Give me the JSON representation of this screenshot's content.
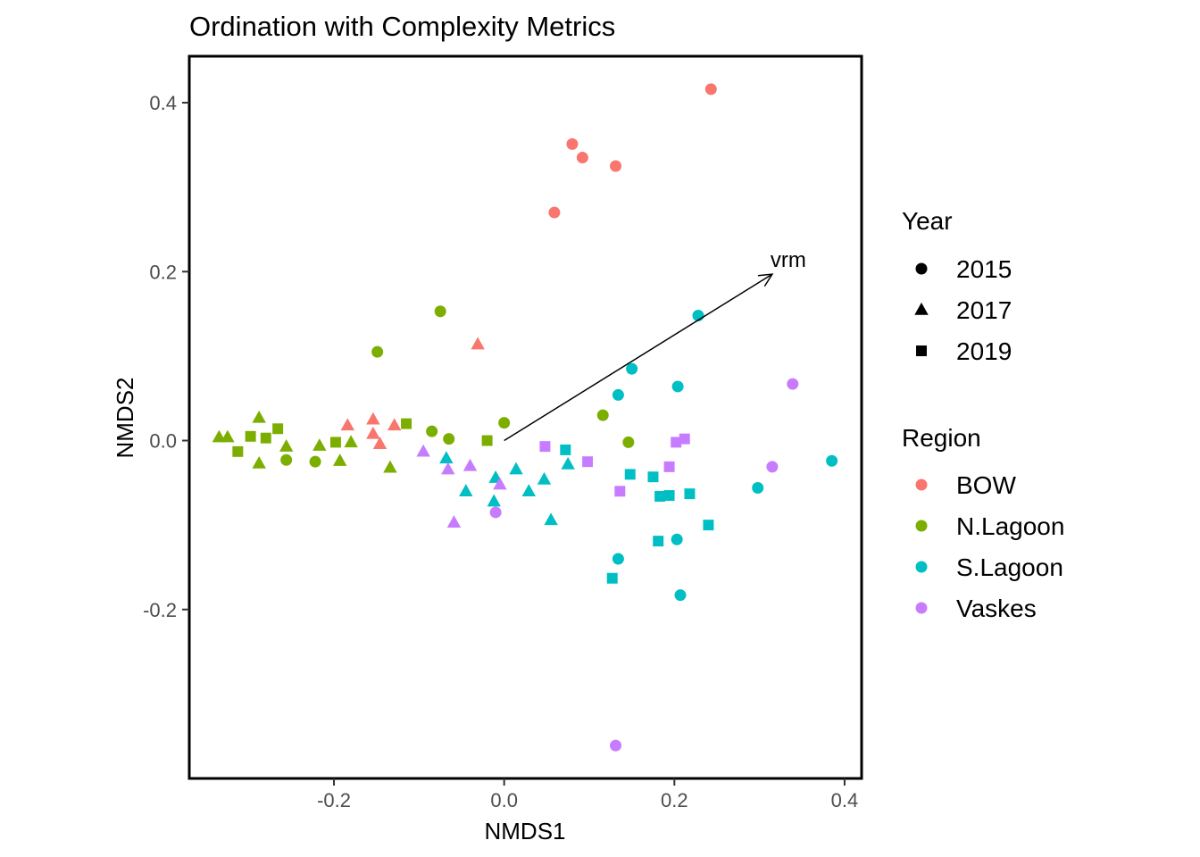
{
  "chart_data": {
    "type": "scatter",
    "title": "Ordination with Complexity Metrics",
    "xlabel": "NMDS1",
    "ylabel": "NMDS2",
    "xlim": [
      -0.37,
      0.42
    ],
    "ylim": [
      -0.4,
      0.455
    ],
    "x_ticks": [
      -0.2,
      0.0,
      0.2,
      0.4
    ],
    "x_tick_labels": [
      "-0.2",
      "0.0",
      "0.2",
      "0.4"
    ],
    "y_ticks": [
      -0.2,
      0.0,
      0.2,
      0.4
    ],
    "y_tick_labels": [
      "-0.2",
      "0.0",
      "0.2",
      "0.4"
    ],
    "grid": false,
    "legend": {
      "placement": "right",
      "shape_title": "Year",
      "shapes": [
        {
          "label": "2015",
          "shape": "circle"
        },
        {
          "label": "2017",
          "shape": "triangle"
        },
        {
          "label": "2019",
          "shape": "square"
        }
      ],
      "color_title": "Region",
      "colors": [
        {
          "label": "BOW",
          "color": "#F8766D"
        },
        {
          "label": "N.Lagoon",
          "color": "#7CAE00"
        },
        {
          "label": "S.Lagoon",
          "color": "#00BFC4"
        },
        {
          "label": "Vaskes",
          "color": "#C77CFF"
        }
      ]
    },
    "vector": {
      "label": "vrm",
      "x0": 0.0,
      "y0": 0.0,
      "x1": 0.315,
      "y1": 0.197
    },
    "points": [
      {
        "x": 0.243,
        "y": 0.416,
        "region": "BOW",
        "year": "2015"
      },
      {
        "x": 0.08,
        "y": 0.351,
        "region": "BOW",
        "year": "2015"
      },
      {
        "x": 0.092,
        "y": 0.335,
        "region": "BOW",
        "year": "2015"
      },
      {
        "x": 0.131,
        "y": 0.325,
        "region": "BOW",
        "year": "2015"
      },
      {
        "x": 0.059,
        "y": 0.27,
        "region": "BOW",
        "year": "2015"
      },
      {
        "x": -0.031,
        "y": 0.114,
        "region": "BOW",
        "year": "2017"
      },
      {
        "x": -0.184,
        "y": 0.018,
        "region": "BOW",
        "year": "2017"
      },
      {
        "x": -0.154,
        "y": 0.025,
        "region": "BOW",
        "year": "2017"
      },
      {
        "x": -0.154,
        "y": 0.008,
        "region": "BOW",
        "year": "2017"
      },
      {
        "x": -0.146,
        "y": -0.004,
        "region": "BOW",
        "year": "2017"
      },
      {
        "x": -0.129,
        "y": 0.018,
        "region": "BOW",
        "year": "2017"
      },
      {
        "x": -0.075,
        "y": 0.153,
        "region": "N.Lagoon",
        "year": "2015"
      },
      {
        "x": -0.149,
        "y": 0.105,
        "region": "N.Lagoon",
        "year": "2015"
      },
      {
        "x": 0.0,
        "y": 0.021,
        "region": "N.Lagoon",
        "year": "2015"
      },
      {
        "x": -0.085,
        "y": 0.011,
        "region": "N.Lagoon",
        "year": "2015"
      },
      {
        "x": -0.065,
        "y": 0.002,
        "region": "N.Lagoon",
        "year": "2015"
      },
      {
        "x": -0.256,
        "y": -0.023,
        "region": "N.Lagoon",
        "year": "2015"
      },
      {
        "x": -0.222,
        "y": -0.025,
        "region": "N.Lagoon",
        "year": "2015"
      },
      {
        "x": 0.116,
        "y": 0.03,
        "region": "N.Lagoon",
        "year": "2015"
      },
      {
        "x": 0.146,
        "y": -0.002,
        "region": "N.Lagoon",
        "year": "2015"
      },
      {
        "x": -0.335,
        "y": 0.004,
        "region": "N.Lagoon",
        "year": "2017"
      },
      {
        "x": -0.325,
        "y": 0.004,
        "region": "N.Lagoon",
        "year": "2017"
      },
      {
        "x": -0.288,
        "y": 0.027,
        "region": "N.Lagoon",
        "year": "2017"
      },
      {
        "x": -0.288,
        "y": -0.027,
        "region": "N.Lagoon",
        "year": "2017"
      },
      {
        "x": -0.256,
        "y": -0.007,
        "region": "N.Lagoon",
        "year": "2017"
      },
      {
        "x": -0.217,
        "y": -0.006,
        "region": "N.Lagoon",
        "year": "2017"
      },
      {
        "x": -0.193,
        "y": -0.024,
        "region": "N.Lagoon",
        "year": "2017"
      },
      {
        "x": -0.18,
        "y": -0.002,
        "region": "N.Lagoon",
        "year": "2017"
      },
      {
        "x": -0.134,
        "y": -0.032,
        "region": "N.Lagoon",
        "year": "2017"
      },
      {
        "x": -0.313,
        "y": -0.013,
        "region": "N.Lagoon",
        "year": "2019"
      },
      {
        "x": -0.298,
        "y": 0.005,
        "region": "N.Lagoon",
        "year": "2019"
      },
      {
        "x": -0.28,
        "y": 0.003,
        "region": "N.Lagoon",
        "year": "2019"
      },
      {
        "x": -0.266,
        "y": 0.014,
        "region": "N.Lagoon",
        "year": "2019"
      },
      {
        "x": -0.198,
        "y": -0.002,
        "region": "N.Lagoon",
        "year": "2019"
      },
      {
        "x": -0.115,
        "y": 0.02,
        "region": "N.Lagoon",
        "year": "2019"
      },
      {
        "x": -0.02,
        "y": 0.0,
        "region": "N.Lagoon",
        "year": "2019"
      },
      {
        "x": 0.228,
        "y": 0.148,
        "region": "S.Lagoon",
        "year": "2015"
      },
      {
        "x": 0.15,
        "y": 0.085,
        "region": "S.Lagoon",
        "year": "2015"
      },
      {
        "x": 0.134,
        "y": 0.054,
        "region": "S.Lagoon",
        "year": "2015"
      },
      {
        "x": 0.204,
        "y": 0.064,
        "region": "S.Lagoon",
        "year": "2015"
      },
      {
        "x": 0.385,
        "y": -0.024,
        "region": "S.Lagoon",
        "year": "2015"
      },
      {
        "x": 0.298,
        "y": -0.056,
        "region": "S.Lagoon",
        "year": "2015"
      },
      {
        "x": 0.203,
        "y": -0.117,
        "region": "S.Lagoon",
        "year": "2015"
      },
      {
        "x": 0.134,
        "y": -0.14,
        "region": "S.Lagoon",
        "year": "2015"
      },
      {
        "x": 0.207,
        "y": -0.183,
        "region": "S.Lagoon",
        "year": "2015"
      },
      {
        "x": -0.068,
        "y": -0.021,
        "region": "S.Lagoon",
        "year": "2017"
      },
      {
        "x": -0.045,
        "y": -0.06,
        "region": "S.Lagoon",
        "year": "2017"
      },
      {
        "x": -0.01,
        "y": -0.044,
        "region": "S.Lagoon",
        "year": "2017"
      },
      {
        "x": -0.012,
        "y": -0.072,
        "region": "S.Lagoon",
        "year": "2017"
      },
      {
        "x": 0.014,
        "y": -0.034,
        "region": "S.Lagoon",
        "year": "2017"
      },
      {
        "x": 0.029,
        "y": -0.06,
        "region": "S.Lagoon",
        "year": "2017"
      },
      {
        "x": 0.047,
        "y": -0.046,
        "region": "S.Lagoon",
        "year": "2017"
      },
      {
        "x": 0.055,
        "y": -0.094,
        "region": "S.Lagoon",
        "year": "2017"
      },
      {
        "x": 0.075,
        "y": -0.028,
        "region": "S.Lagoon",
        "year": "2017"
      },
      {
        "x": 0.072,
        "y": -0.011,
        "region": "S.Lagoon",
        "year": "2019"
      },
      {
        "x": 0.148,
        "y": -0.04,
        "region": "S.Lagoon",
        "year": "2019"
      },
      {
        "x": 0.175,
        "y": -0.043,
        "region": "S.Lagoon",
        "year": "2019"
      },
      {
        "x": 0.183,
        "y": -0.066,
        "region": "S.Lagoon",
        "year": "2019"
      },
      {
        "x": 0.194,
        "y": -0.065,
        "region": "S.Lagoon",
        "year": "2019"
      },
      {
        "x": 0.218,
        "y": -0.063,
        "region": "S.Lagoon",
        "year": "2019"
      },
      {
        "x": 0.181,
        "y": -0.119,
        "region": "S.Lagoon",
        "year": "2019"
      },
      {
        "x": 0.24,
        "y": -0.1,
        "region": "S.Lagoon",
        "year": "2019"
      },
      {
        "x": 0.127,
        "y": -0.163,
        "region": "S.Lagoon",
        "year": "2019"
      },
      {
        "x": 0.339,
        "y": 0.067,
        "region": "Vaskes",
        "year": "2015"
      },
      {
        "x": 0.315,
        "y": -0.031,
        "region": "Vaskes",
        "year": "2015"
      },
      {
        "x": 0.131,
        "y": -0.361,
        "region": "Vaskes",
        "year": "2015"
      },
      {
        "x": -0.01,
        "y": -0.085,
        "region": "Vaskes",
        "year": "2015"
      },
      {
        "x": -0.095,
        "y": -0.013,
        "region": "Vaskes",
        "year": "2017"
      },
      {
        "x": -0.066,
        "y": -0.034,
        "region": "Vaskes",
        "year": "2017"
      },
      {
        "x": -0.04,
        "y": -0.03,
        "region": "Vaskes",
        "year": "2017"
      },
      {
        "x": -0.059,
        "y": -0.097,
        "region": "Vaskes",
        "year": "2017"
      },
      {
        "x": -0.005,
        "y": -0.052,
        "region": "Vaskes",
        "year": "2017"
      },
      {
        "x": 0.048,
        "y": -0.007,
        "region": "Vaskes",
        "year": "2019"
      },
      {
        "x": 0.098,
        "y": -0.025,
        "region": "Vaskes",
        "year": "2019"
      },
      {
        "x": 0.136,
        "y": -0.06,
        "region": "Vaskes",
        "year": "2019"
      },
      {
        "x": 0.194,
        "y": -0.031,
        "region": "Vaskes",
        "year": "2019"
      },
      {
        "x": 0.202,
        "y": -0.002,
        "region": "Vaskes",
        "year": "2019"
      },
      {
        "x": 0.212,
        "y": 0.002,
        "region": "Vaskes",
        "year": "2019"
      }
    ]
  }
}
